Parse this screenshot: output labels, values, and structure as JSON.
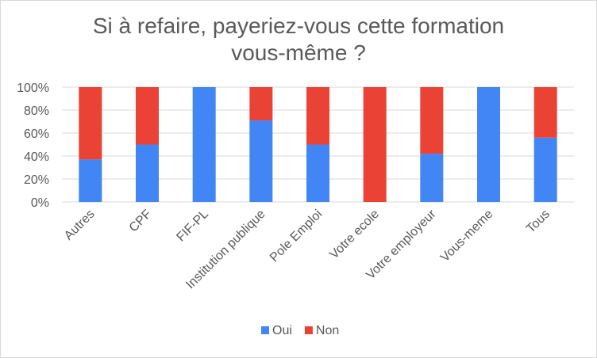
{
  "chart_data": {
    "type": "bar",
    "stacked": true,
    "normalized": true,
    "title": [
      "Si à refaire, payeriez-vous  cette formation",
      "vous-même ?"
    ],
    "categories": [
      "Autres",
      "CPF",
      "FIF-PL",
      "Institution publique",
      "Pole Emploi",
      "Votre ecole",
      "Votre employeur",
      "Vous-meme",
      "Tous"
    ],
    "series": [
      {
        "name": "Oui",
        "color": "#4285f4",
        "values": [
          37,
          50,
          100,
          71,
          50,
          0,
          42,
          100,
          56
        ]
      },
      {
        "name": "Non",
        "color": "#ea4335",
        "values": [
          63,
          50,
          0,
          29,
          50,
          100,
          58,
          0,
          44
        ]
      }
    ],
    "y_ticks": [
      "0%",
      "20%",
      "40%",
      "60%",
      "80%",
      "100%"
    ],
    "ylim": [
      0,
      100
    ],
    "grid": true,
    "legend_position": "bottom"
  }
}
